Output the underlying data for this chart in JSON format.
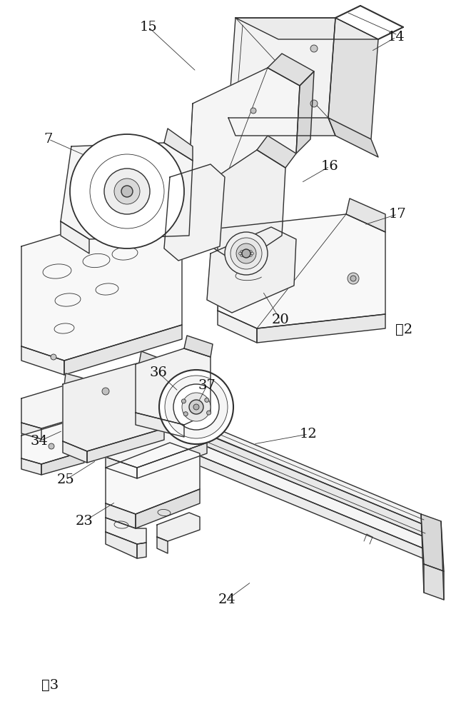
{
  "bg_color": "#ffffff",
  "line_color": "#303030",
  "lw": 1.0,
  "tlw": 0.6,
  "fig2_label": "图2",
  "fig3_label": "图3",
  "fig2_annotations": [
    [
      "7",
      68,
      195,
      120,
      218
    ],
    [
      "15",
      208,
      38,
      275,
      100
    ],
    [
      "14",
      555,
      52,
      520,
      72
    ],
    [
      "16",
      462,
      233,
      422,
      256
    ],
    [
      "17",
      557,
      300,
      510,
      315
    ],
    [
      "20",
      393,
      448,
      368,
      408
    ]
  ],
  "fig3_annotations": [
    [
      "36",
      222,
      522,
      250,
      548
    ],
    [
      "37",
      290,
      540,
      278,
      563
    ],
    [
      "12",
      432,
      608,
      355,
      622
    ],
    [
      "34",
      55,
      618,
      88,
      603
    ],
    [
      "25",
      92,
      672,
      135,
      645
    ],
    [
      "23",
      118,
      730,
      162,
      703
    ],
    [
      "24",
      318,
      840,
      352,
      815
    ]
  ]
}
